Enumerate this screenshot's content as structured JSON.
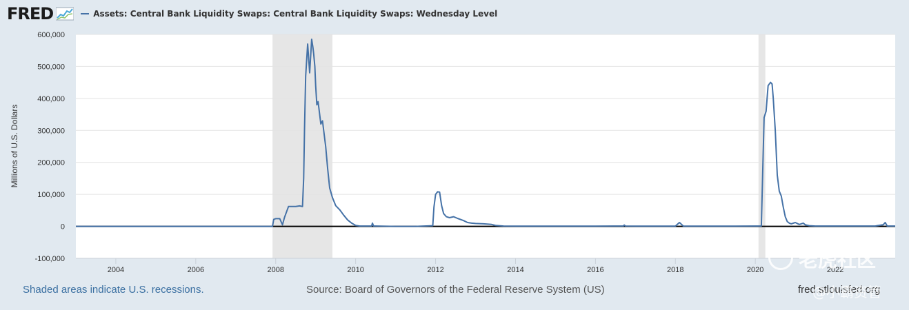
{
  "header": {
    "logo_text": "FRED",
    "series_title": "Assets: Central Bank Liquidity Swaps: Central Bank Liquidity Swaps: Wednesday Level",
    "series_color": "#4572a7"
  },
  "footer": {
    "recession_note": "Shaded areas indicate U.S. recessions.",
    "source": "Source: Board of Governors of the Federal Reserve System (US)",
    "site": "fred.stlouisfed.org"
  },
  "watermark": {
    "brand": "老虎社区",
    "handle": "@小霸资管"
  },
  "chart_data": {
    "type": "line",
    "title": "",
    "xlabel": "",
    "ylabel": "Millions of U.S. Dollars",
    "xlim": [
      2003.0,
      2023.5
    ],
    "ylim": [
      -100000,
      600000
    ],
    "yticks": [
      -100000,
      0,
      100000,
      200000,
      300000,
      400000,
      500000,
      600000
    ],
    "ytick_labels": [
      "-100,000",
      "0",
      "100,000",
      "200,000",
      "300,000",
      "400,000",
      "500,000",
      "600,000"
    ],
    "xticks": [
      2004,
      2006,
      2008,
      2010,
      2012,
      2014,
      2016,
      2018,
      2020,
      2022
    ],
    "xtick_labels": [
      "2004",
      "2006",
      "2008",
      "2010",
      "2012",
      "2014",
      "2016",
      "2018",
      "2020",
      "2022"
    ],
    "grid": true,
    "recessions": [
      [
        2007.92,
        2009.42
      ],
      [
        2020.08,
        2020.25
      ]
    ],
    "series": [
      {
        "color": "#4572a7",
        "x": [
          2003.0,
          2007.92,
          2007.95,
          2008.0,
          2008.1,
          2008.17,
          2008.22,
          2008.27,
          2008.32,
          2008.4,
          2008.5,
          2008.6,
          2008.67,
          2008.7,
          2008.72,
          2008.75,
          2008.8,
          2008.85,
          2008.9,
          2008.93,
          2008.95,
          2008.98,
          2009.0,
          2009.03,
          2009.06,
          2009.1,
          2009.13,
          2009.17,
          2009.2,
          2009.25,
          2009.3,
          2009.35,
          2009.42,
          2009.5,
          2009.6,
          2009.7,
          2009.8,
          2009.9,
          2010.0,
          2010.1,
          2010.4,
          2010.42,
          2010.45,
          2010.5,
          2011.0,
          2011.5,
          2011.93,
          2011.96,
          2012.0,
          2012.05,
          2012.1,
          2012.15,
          2012.2,
          2012.27,
          2012.35,
          2012.45,
          2012.55,
          2012.7,
          2012.8,
          2012.9,
          2013.0,
          2013.2,
          2013.4,
          2013.5,
          2013.7,
          2014.0,
          2015.0,
          2016.0,
          2016.7,
          2016.72,
          2016.75,
          2017.0,
          2017.5,
          2018.0,
          2018.1,
          2018.12,
          2018.2,
          2019.0,
          2019.5,
          2020.0,
          2020.15,
          2020.22,
          2020.27,
          2020.32,
          2020.38,
          2020.42,
          2020.45,
          2020.5,
          2020.55,
          2020.6,
          2020.65,
          2020.7,
          2020.75,
          2020.8,
          2020.85,
          2020.9,
          2021.0,
          2021.1,
          2021.2,
          2021.25,
          2021.35,
          2021.5,
          2022.0,
          2023.0,
          2023.2,
          2023.25,
          2023.3,
          2023.5
        ],
        "y": [
          0,
          0,
          22000,
          24000,
          24000,
          5000,
          28000,
          45000,
          62000,
          62000,
          62000,
          64000,
          62000,
          150000,
          300000,
          470000,
          570000,
          480000,
          585000,
          560000,
          540000,
          500000,
          440000,
          380000,
          390000,
          350000,
          320000,
          330000,
          300000,
          250000,
          180000,
          120000,
          90000,
          65000,
          52000,
          35000,
          20000,
          10000,
          3000,
          1000,
          1000,
          10000,
          1000,
          1000,
          0,
          0,
          2000,
          60000,
          100000,
          108000,
          107000,
          65000,
          40000,
          30000,
          27000,
          30000,
          25000,
          18000,
          12000,
          10000,
          9000,
          8000,
          6000,
          3000,
          1000,
          500,
          500,
          500,
          1000,
          4000,
          1000,
          500,
          500,
          500,
          12000,
          10000,
          500,
          500,
          500,
          1000,
          1000,
          340000,
          360000,
          440000,
          450000,
          445000,
          400000,
          300000,
          160000,
          110000,
          95000,
          60000,
          30000,
          15000,
          10000,
          8000,
          12000,
          6000,
          10000,
          5000,
          2000,
          1000,
          1000,
          1000,
          5000,
          12000,
          1000,
          1000
        ]
      }
    ]
  }
}
